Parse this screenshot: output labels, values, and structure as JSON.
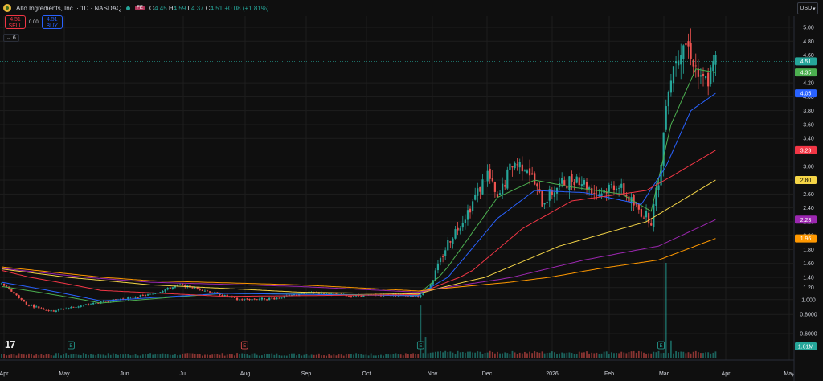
{
  "header": {
    "title": "Alto Ingredients, Inc. · 1D · NASDAQ",
    "flag": "FE",
    "ohlc": {
      "o_label": "O",
      "o": "4.45",
      "h_label": "H",
      "h": "4.59",
      "l_label": "L",
      "l": "4.37",
      "c_label": "C",
      "c": "4.51",
      "change": "+0.08 (+1.81%)"
    }
  },
  "trade": {
    "sell_price": "4.51",
    "sell_label": "SELL",
    "spread": "0.00",
    "buy_price": "4.51",
    "buy_label": "BUY"
  },
  "indicators_toggle": "6",
  "currency": "USD",
  "colors": {
    "up": "#26a69a",
    "down": "#ef5350",
    "grid": "#1e1e1e",
    "text": "#d1d4dc",
    "ema_green": "#4caf50",
    "ema_blue": "#2962ff",
    "ema_red": "#f23645",
    "ema_yellow": "#f5d547",
    "ema_purple": "#9c27b0",
    "ema_orange": "#ff9800"
  },
  "chart_data": {
    "type": "line",
    "y_axis_ticks": [
      "5.00",
      "4.80",
      "4.60",
      "4.20",
      "4.00",
      "3.80",
      "3.60",
      "3.40",
      "3.00",
      "2.80",
      "2.60",
      "2.40",
      "2.20",
      "2.00",
      "1.80",
      "1.60",
      "1.40",
      "1.20",
      "1.000",
      "0.8000",
      "0.6000"
    ],
    "x_axis_ticks": [
      "Apr",
      "May",
      "Jun",
      "Jul",
      "Aug",
      "Sep",
      "Oct",
      "Nov",
      "Dec",
      "2026",
      "Feb",
      "Mar",
      "Apr",
      "May"
    ],
    "price_labels": [
      {
        "name": "last",
        "value": "4.51",
        "color": "#26a69a"
      },
      {
        "name": "ema-green",
        "value": "4.35",
        "color": "#4caf50"
      },
      {
        "name": "ema-blue",
        "value": "4.05",
        "color": "#2962ff"
      },
      {
        "name": "ema-red",
        "value": "3.23",
        "color": "#f23645"
      },
      {
        "name": "ema-yellow",
        "value": "2.80",
        "color": "#f5d547"
      },
      {
        "name": "ema-purple",
        "value": "2.23",
        "color": "#9c27b0"
      },
      {
        "name": "ema-orange",
        "value": "1.96",
        "color": "#ff9800"
      },
      {
        "name": "volume",
        "value": "1.61M",
        "color": "#26a69a"
      }
    ],
    "price_key": [
      {
        "t": 0,
        "v": 1.27
      },
      {
        "t": 10,
        "v": 0.93
      },
      {
        "t": 20,
        "v": 0.84
      },
      {
        "t": 35,
        "v": 0.93
      },
      {
        "t": 60,
        "v": 1.08
      },
      {
        "t": 72,
        "v": 1.25
      },
      {
        "t": 85,
        "v": 1.12
      },
      {
        "t": 95,
        "v": 1.0
      },
      {
        "t": 110,
        "v": 1.02
      },
      {
        "t": 125,
        "v": 1.12
      },
      {
        "t": 140,
        "v": 1.06
      },
      {
        "t": 160,
        "v": 1.08
      },
      {
        "t": 168,
        "v": 1.05
      },
      {
        "t": 172,
        "v": 1.2
      },
      {
        "t": 180,
        "v": 1.9
      },
      {
        "t": 188,
        "v": 2.35
      },
      {
        "t": 196,
        "v": 2.9
      },
      {
        "t": 200,
        "v": 2.5
      },
      {
        "t": 206,
        "v": 3.05
      },
      {
        "t": 212,
        "v": 3.0
      },
      {
        "t": 218,
        "v": 2.48
      },
      {
        "t": 224,
        "v": 2.7
      },
      {
        "t": 232,
        "v": 2.85
      },
      {
        "t": 240,
        "v": 2.6
      },
      {
        "t": 248,
        "v": 2.75
      },
      {
        "t": 256,
        "v": 2.4
      },
      {
        "t": 262,
        "v": 2.22
      },
      {
        "t": 266,
        "v": 3.0
      },
      {
        "t": 268,
        "v": 4.0
      },
      {
        "t": 272,
        "v": 4.6
      },
      {
        "t": 275,
        "v": 4.8
      },
      {
        "t": 278,
        "v": 4.65
      },
      {
        "t": 282,
        "v": 4.2
      },
      {
        "t": 285,
        "v": 4.25
      },
      {
        "t": 288,
        "v": 4.51
      }
    ],
    "ema_series": [
      {
        "name": "ema-green",
        "color": "#4caf50",
        "values": [
          {
            "t": 0,
            "v": 1.22
          },
          {
            "t": 40,
            "v": 0.95
          },
          {
            "t": 90,
            "v": 1.1
          },
          {
            "t": 168,
            "v": 1.07
          },
          {
            "t": 180,
            "v": 1.55
          },
          {
            "t": 200,
            "v": 2.55
          },
          {
            "t": 215,
            "v": 2.8
          },
          {
            "t": 230,
            "v": 2.7
          },
          {
            "t": 250,
            "v": 2.6
          },
          {
            "t": 262,
            "v": 2.35
          },
          {
            "t": 270,
            "v": 3.6
          },
          {
            "t": 280,
            "v": 4.4
          },
          {
            "t": 288,
            "v": 4.35
          }
        ]
      },
      {
        "name": "ema-blue",
        "color": "#2962ff",
        "values": [
          {
            "t": 0,
            "v": 1.3
          },
          {
            "t": 40,
            "v": 0.98
          },
          {
            "t": 90,
            "v": 1.1
          },
          {
            "t": 168,
            "v": 1.06
          },
          {
            "t": 180,
            "v": 1.4
          },
          {
            "t": 200,
            "v": 2.25
          },
          {
            "t": 215,
            "v": 2.65
          },
          {
            "t": 235,
            "v": 2.62
          },
          {
            "t": 258,
            "v": 2.45
          },
          {
            "t": 268,
            "v": 3.0
          },
          {
            "t": 278,
            "v": 3.8
          },
          {
            "t": 288,
            "v": 4.05
          }
        ]
      },
      {
        "name": "ema-red",
        "color": "#f23645",
        "values": [
          {
            "t": 0,
            "v": 1.5
          },
          {
            "t": 40,
            "v": 1.15
          },
          {
            "t": 90,
            "v": 1.05
          },
          {
            "t": 168,
            "v": 1.08
          },
          {
            "t": 190,
            "v": 1.5
          },
          {
            "t": 210,
            "v": 2.1
          },
          {
            "t": 230,
            "v": 2.5
          },
          {
            "t": 260,
            "v": 2.65
          },
          {
            "t": 270,
            "v": 2.85
          },
          {
            "t": 288,
            "v": 3.23
          }
        ]
      },
      {
        "name": "ema-yellow",
        "color": "#f5d547",
        "values": [
          {
            "t": 0,
            "v": 1.52
          },
          {
            "t": 60,
            "v": 1.25
          },
          {
            "t": 120,
            "v": 1.12
          },
          {
            "t": 168,
            "v": 1.09
          },
          {
            "t": 195,
            "v": 1.4
          },
          {
            "t": 225,
            "v": 1.85
          },
          {
            "t": 260,
            "v": 2.2
          },
          {
            "t": 288,
            "v": 2.8
          }
        ]
      },
      {
        "name": "ema-purple",
        "color": "#9c27b0",
        "values": [
          {
            "t": 0,
            "v": 1.53
          },
          {
            "t": 60,
            "v": 1.3
          },
          {
            "t": 120,
            "v": 1.22
          },
          {
            "t": 168,
            "v": 1.12
          },
          {
            "t": 200,
            "v": 1.35
          },
          {
            "t": 235,
            "v": 1.65
          },
          {
            "t": 265,
            "v": 1.85
          },
          {
            "t": 288,
            "v": 2.23
          }
        ]
      },
      {
        "name": "ema-orange",
        "color": "#ff9800",
        "values": [
          {
            "t": 0,
            "v": 1.55
          },
          {
            "t": 60,
            "v": 1.33
          },
          {
            "t": 120,
            "v": 1.25
          },
          {
            "t": 168,
            "v": 1.14
          },
          {
            "t": 205,
            "v": 1.3
          },
          {
            "t": 240,
            "v": 1.52
          },
          {
            "t": 265,
            "v": 1.65
          },
          {
            "t": 288,
            "v": 1.96
          }
        ]
      }
    ],
    "volume_spikes": [
      {
        "t": 169,
        "rel": 0.55
      },
      {
        "t": 171,
        "rel": 0.22
      },
      {
        "t": 268,
        "rel": 1.0
      },
      {
        "t": 270,
        "rel": 0.18
      }
    ],
    "earnings_markers": [
      {
        "t": 28,
        "kind": "up",
        "label": "E"
      },
      {
        "t": 98,
        "kind": "down",
        "label": "E"
      },
      {
        "t": 169,
        "kind": "up",
        "label": "E"
      },
      {
        "t": 266,
        "kind": "up",
        "label": "E"
      }
    ]
  }
}
